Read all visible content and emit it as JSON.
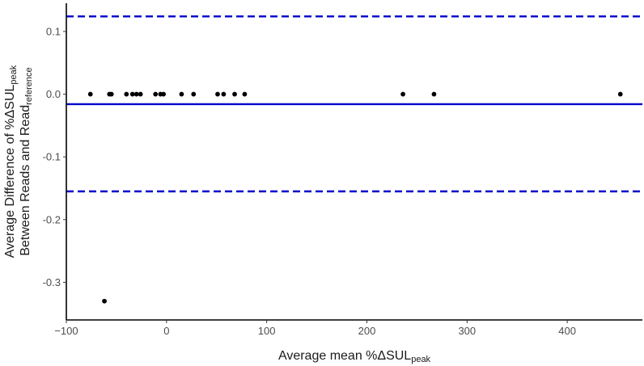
{
  "chart_data": {
    "type": "scatter",
    "xlabel_parts": [
      "Average mean %ΔSUL",
      "peak"
    ],
    "ylabel_line1_parts": [
      "Average Difference of %ΔSUL",
      "peak"
    ],
    "ylabel_line2_parts": [
      "Between Reads and Read",
      "reference"
    ],
    "xlim": [
      -100,
      475
    ],
    "ylim": [
      -0.36,
      0.145
    ],
    "x_ticks": [
      -100,
      0,
      100,
      200,
      300,
      400
    ],
    "x_tick_labels": [
      "−100",
      "0",
      "100",
      "200",
      "300",
      "400"
    ],
    "y_ticks": [
      0.1,
      0.0,
      -0.1,
      -0.2,
      -0.3
    ],
    "y_tick_labels": [
      "0.1",
      "0.0",
      "-0.1",
      "-0.2",
      "-0.3"
    ],
    "reference_lines": [
      {
        "role": "upper-limit",
        "y": 0.124,
        "style": "dashed",
        "color": "#0000CC"
      },
      {
        "role": "mean-difference",
        "y": -0.016,
        "style": "solid",
        "color": "#0000CC"
      },
      {
        "role": "lower-limit",
        "y": -0.155,
        "style": "dashed",
        "color": "#0000CC"
      }
    ],
    "point_color": "#000000",
    "points": [
      {
        "x": -76,
        "y": 0.0
      },
      {
        "x": -57,
        "y": 0.0
      },
      {
        "x": -55,
        "y": 0.0
      },
      {
        "x": -40,
        "y": 0.0
      },
      {
        "x": -34,
        "y": 0.0
      },
      {
        "x": -30,
        "y": 0.0
      },
      {
        "x": -26,
        "y": 0.0
      },
      {
        "x": -11,
        "y": 0.0
      },
      {
        "x": -6,
        "y": 0.0
      },
      {
        "x": -3,
        "y": 0.0
      },
      {
        "x": 15,
        "y": 0.0
      },
      {
        "x": 27,
        "y": 0.0
      },
      {
        "x": 51,
        "y": 0.0
      },
      {
        "x": 57,
        "y": 0.0
      },
      {
        "x": 68,
        "y": 0.0
      },
      {
        "x": 78,
        "y": 0.0
      },
      {
        "x": 236,
        "y": 0.0
      },
      {
        "x": 267,
        "y": 0.0
      },
      {
        "x": 453,
        "y": 0.0
      },
      {
        "x": -62,
        "y": -0.33
      }
    ],
    "grid": false
  }
}
